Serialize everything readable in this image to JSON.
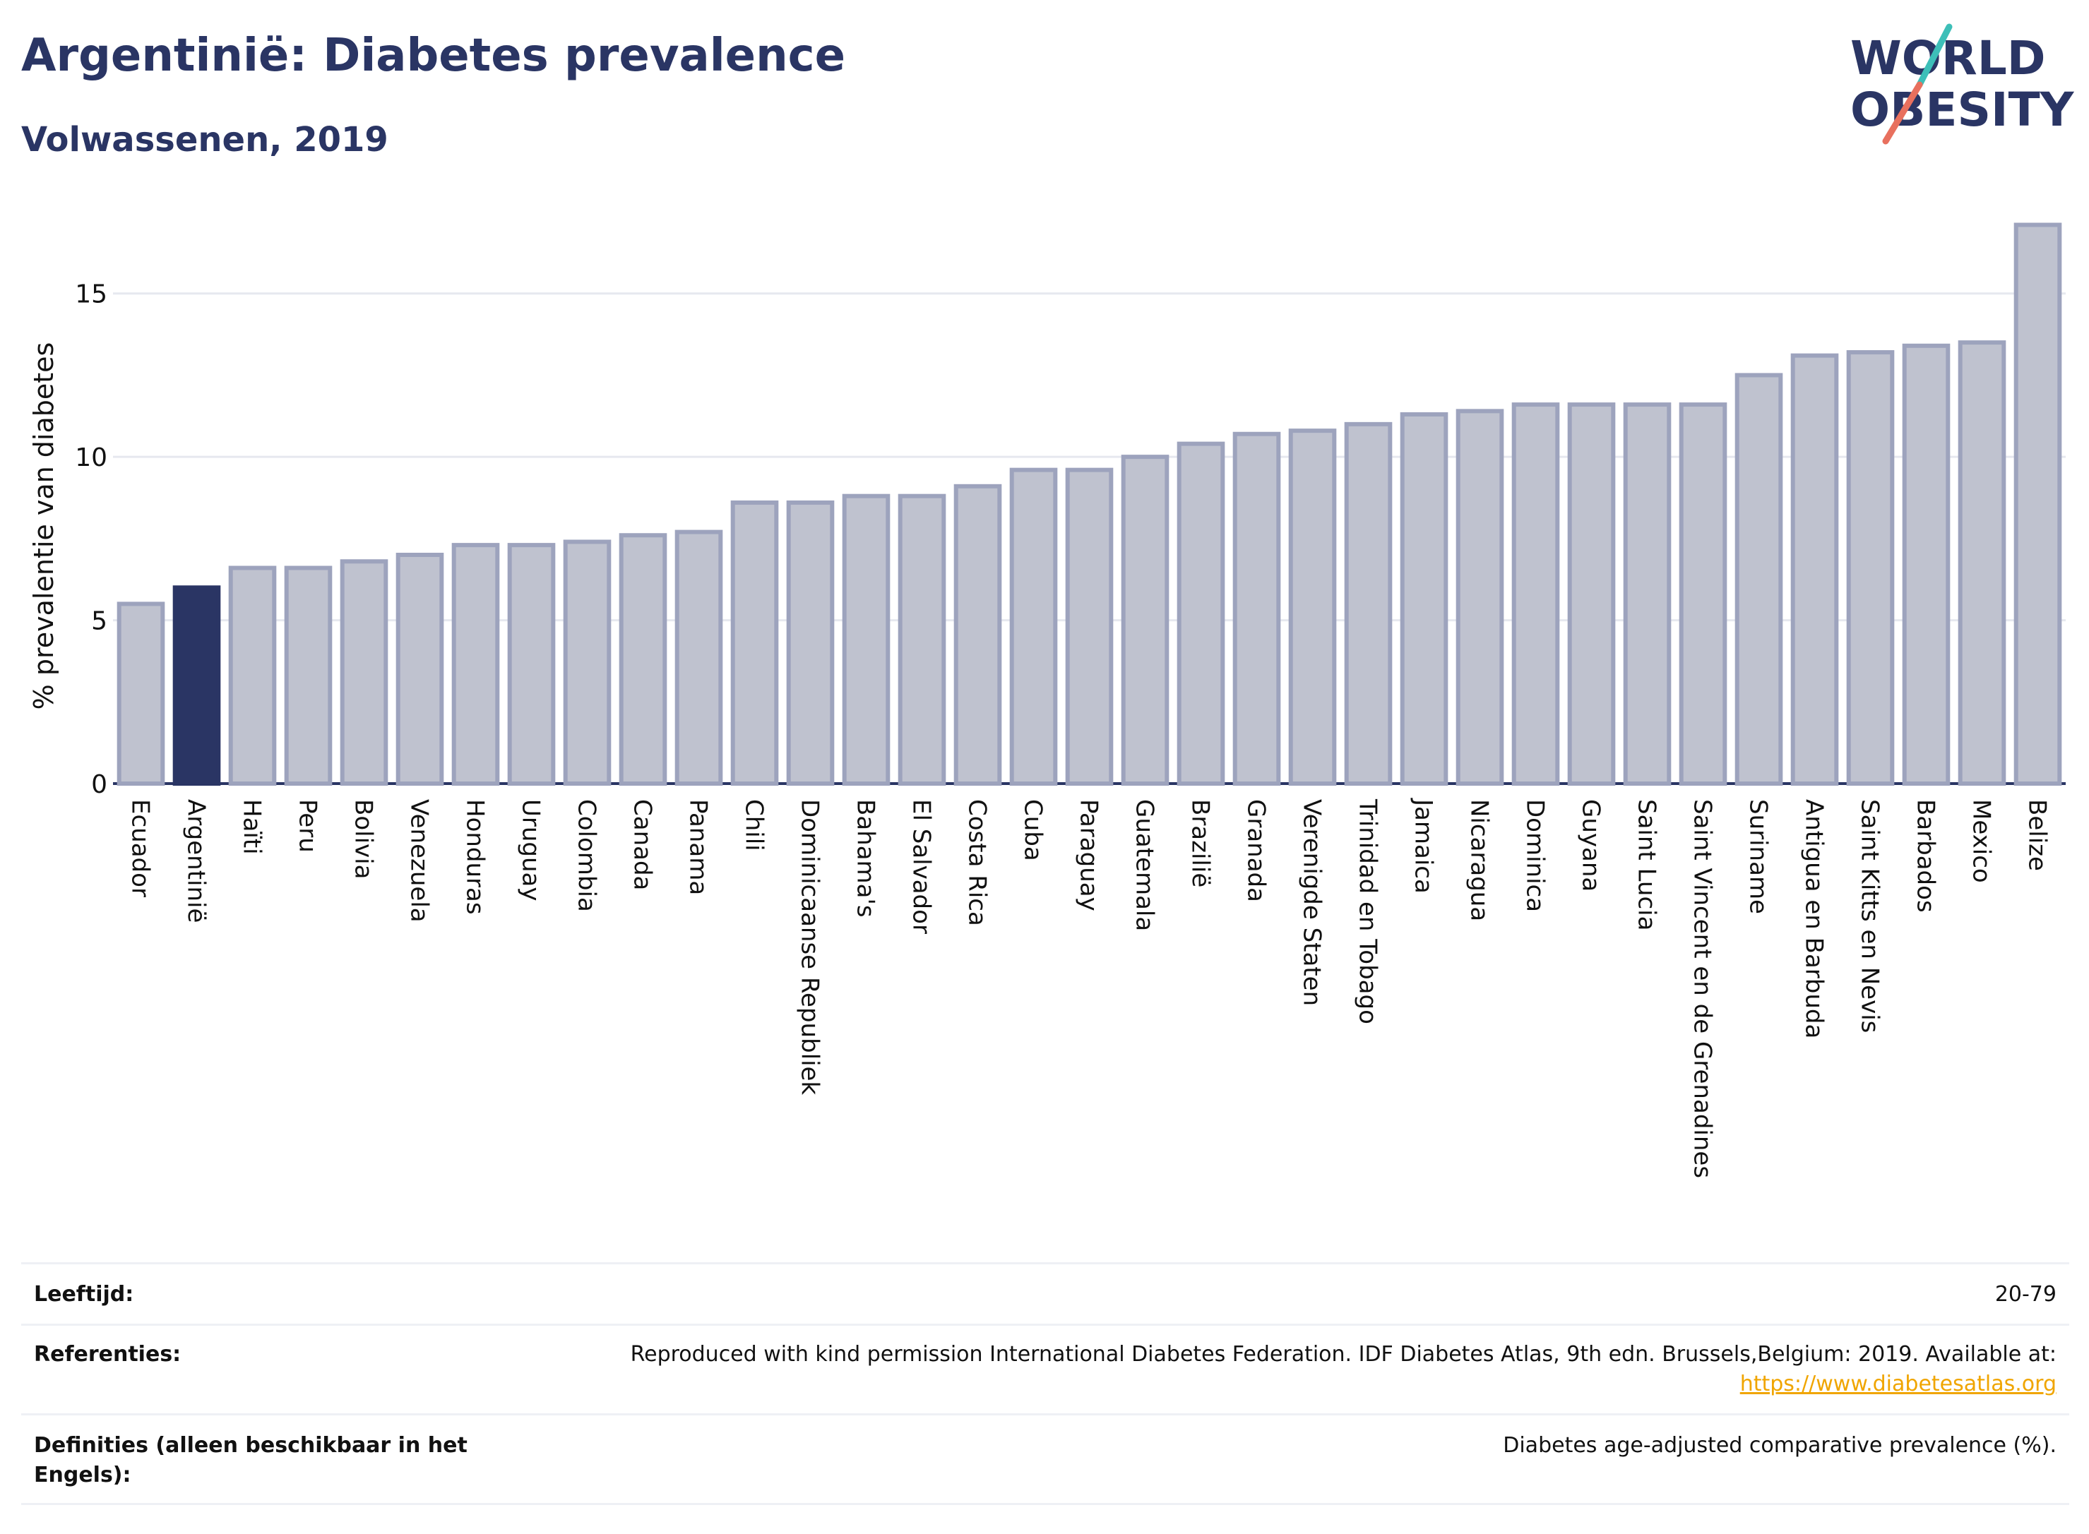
{
  "header": {
    "title": "Argentinië: Diabetes prevalence",
    "subtitle": "Volwassenen, 2019"
  },
  "logo": {
    "line1": "WORLD",
    "line2": "OBESITY"
  },
  "colors": {
    "highlight": "#2a3564",
    "bar_fill": "#bfc2cf",
    "bar_stroke": "#9da3bd",
    "grid": "#e6e8ef",
    "text": "#2a3564",
    "logo_teal": "#3dbfb8",
    "logo_coral": "#e8705e"
  },
  "chart_data": {
    "type": "bar",
    "ylabel": "% prevalentie van diabetes",
    "xlabel": "",
    "ylim": [
      0,
      17.5
    ],
    "yticks": [
      0,
      5,
      10,
      15
    ],
    "grid": true,
    "highlight": "Argentinië",
    "categories": [
      "Ecuador",
      "Argentinië",
      "Haïti",
      "Peru",
      "Bolivia",
      "Venezuela",
      "Honduras",
      "Uruguay",
      "Colombia",
      "Canada",
      "Panama",
      "Chili",
      "Dominicaanse Republiek",
      "Bahama's",
      "El Salvador",
      "Costa Rica",
      "Cuba",
      "Paraguay",
      "Guatemala",
      "Brazilië",
      "Granada",
      "Verenigde Staten",
      "Trinidad en Tobago",
      "Jamaica",
      "Nicaragua",
      "Dominica",
      "Guyana",
      "Saint Lucia",
      "Saint Vincent en de Grenadines",
      "Suriname",
      "Antigua en Barbuda",
      "Saint Kitts en Nevis",
      "Barbados",
      "Mexico",
      "Belize"
    ],
    "values": [
      5.5,
      6.0,
      6.6,
      6.6,
      6.8,
      7.0,
      7.3,
      7.3,
      7.4,
      7.6,
      7.7,
      8.6,
      8.6,
      8.8,
      8.8,
      9.1,
      9.6,
      9.6,
      10.0,
      10.4,
      10.7,
      10.8,
      11.0,
      11.3,
      11.4,
      11.6,
      11.6,
      11.6,
      11.6,
      12.5,
      13.1,
      13.2,
      13.4,
      13.5,
      17.1
    ]
  },
  "footer": {
    "rows": [
      {
        "label": "Leeftijd:",
        "value": "20-79"
      },
      {
        "label": "Referenties:",
        "value": "Reproduced with kind permission International Diabetes Federation. IDF Diabetes Atlas, 9th edn. Brussels,Belgium: 2019. Available at:",
        "link": "https://www.diabetesatlas.org"
      },
      {
        "label": "Definities (alleen beschikbaar in het Engels):",
        "value": "Diabetes age-adjusted comparative prevalence (%)."
      }
    ]
  }
}
